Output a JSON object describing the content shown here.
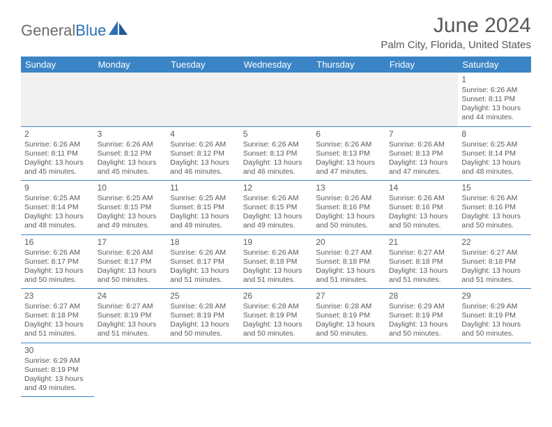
{
  "brand": {
    "part1": "General",
    "part2": "Blue"
  },
  "title": "June 2024",
  "location": "Palm City, Florida, United States",
  "colors": {
    "header_bg": "#3b85c6",
    "header_text": "#ffffff",
    "rule": "#3b85c6",
    "blank_bg": "#f1f1f1",
    "title_color": "#58585a",
    "text_color": "#5a5a5a",
    "logo_gray": "#6a6a6a",
    "logo_blue": "#2c6fb5",
    "background": "#ffffff"
  },
  "typography": {
    "month_title_pt": 30,
    "location_pt": 15,
    "weekday_pt": 13,
    "daynum_pt": 12,
    "body_pt": 10.5,
    "font_family": "Arial"
  },
  "calendar": {
    "type": "table",
    "columns": [
      "Sunday",
      "Monday",
      "Tuesday",
      "Wednesday",
      "Thursday",
      "Friday",
      "Saturday"
    ],
    "weeks": [
      [
        null,
        null,
        null,
        null,
        null,
        null,
        {
          "d": "1",
          "sr": "Sunrise: 6:26 AM",
          "ss": "Sunset: 8:11 PM",
          "dl1": "Daylight: 13 hours",
          "dl2": "and 44 minutes."
        }
      ],
      [
        {
          "d": "2",
          "sr": "Sunrise: 6:26 AM",
          "ss": "Sunset: 8:11 PM",
          "dl1": "Daylight: 13 hours",
          "dl2": "and 45 minutes."
        },
        {
          "d": "3",
          "sr": "Sunrise: 6:26 AM",
          "ss": "Sunset: 8:12 PM",
          "dl1": "Daylight: 13 hours",
          "dl2": "and 45 minutes."
        },
        {
          "d": "4",
          "sr": "Sunrise: 6:26 AM",
          "ss": "Sunset: 8:12 PM",
          "dl1": "Daylight: 13 hours",
          "dl2": "and 46 minutes."
        },
        {
          "d": "5",
          "sr": "Sunrise: 6:26 AM",
          "ss": "Sunset: 8:13 PM",
          "dl1": "Daylight: 13 hours",
          "dl2": "and 46 minutes."
        },
        {
          "d": "6",
          "sr": "Sunrise: 6:26 AM",
          "ss": "Sunset: 8:13 PM",
          "dl1": "Daylight: 13 hours",
          "dl2": "and 47 minutes."
        },
        {
          "d": "7",
          "sr": "Sunrise: 6:26 AM",
          "ss": "Sunset: 8:13 PM",
          "dl1": "Daylight: 13 hours",
          "dl2": "and 47 minutes."
        },
        {
          "d": "8",
          "sr": "Sunrise: 6:25 AM",
          "ss": "Sunset: 8:14 PM",
          "dl1": "Daylight: 13 hours",
          "dl2": "and 48 minutes."
        }
      ],
      [
        {
          "d": "9",
          "sr": "Sunrise: 6:25 AM",
          "ss": "Sunset: 8:14 PM",
          "dl1": "Daylight: 13 hours",
          "dl2": "and 48 minutes."
        },
        {
          "d": "10",
          "sr": "Sunrise: 6:25 AM",
          "ss": "Sunset: 8:15 PM",
          "dl1": "Daylight: 13 hours",
          "dl2": "and 49 minutes."
        },
        {
          "d": "11",
          "sr": "Sunrise: 6:25 AM",
          "ss": "Sunset: 8:15 PM",
          "dl1": "Daylight: 13 hours",
          "dl2": "and 49 minutes."
        },
        {
          "d": "12",
          "sr": "Sunrise: 6:26 AM",
          "ss": "Sunset: 8:15 PM",
          "dl1": "Daylight: 13 hours",
          "dl2": "and 49 minutes."
        },
        {
          "d": "13",
          "sr": "Sunrise: 6:26 AM",
          "ss": "Sunset: 8:16 PM",
          "dl1": "Daylight: 13 hours",
          "dl2": "and 50 minutes."
        },
        {
          "d": "14",
          "sr": "Sunrise: 6:26 AM",
          "ss": "Sunset: 8:16 PM",
          "dl1": "Daylight: 13 hours",
          "dl2": "and 50 minutes."
        },
        {
          "d": "15",
          "sr": "Sunrise: 6:26 AM",
          "ss": "Sunset: 8:16 PM",
          "dl1": "Daylight: 13 hours",
          "dl2": "and 50 minutes."
        }
      ],
      [
        {
          "d": "16",
          "sr": "Sunrise: 6:26 AM",
          "ss": "Sunset: 8:17 PM",
          "dl1": "Daylight: 13 hours",
          "dl2": "and 50 minutes."
        },
        {
          "d": "17",
          "sr": "Sunrise: 6:26 AM",
          "ss": "Sunset: 8:17 PM",
          "dl1": "Daylight: 13 hours",
          "dl2": "and 50 minutes."
        },
        {
          "d": "18",
          "sr": "Sunrise: 6:26 AM",
          "ss": "Sunset: 8:17 PM",
          "dl1": "Daylight: 13 hours",
          "dl2": "and 51 minutes."
        },
        {
          "d": "19",
          "sr": "Sunrise: 6:26 AM",
          "ss": "Sunset: 8:18 PM",
          "dl1": "Daylight: 13 hours",
          "dl2": "and 51 minutes."
        },
        {
          "d": "20",
          "sr": "Sunrise: 6:27 AM",
          "ss": "Sunset: 8:18 PM",
          "dl1": "Daylight: 13 hours",
          "dl2": "and 51 minutes."
        },
        {
          "d": "21",
          "sr": "Sunrise: 6:27 AM",
          "ss": "Sunset: 8:18 PM",
          "dl1": "Daylight: 13 hours",
          "dl2": "and 51 minutes."
        },
        {
          "d": "22",
          "sr": "Sunrise: 6:27 AM",
          "ss": "Sunset: 8:18 PM",
          "dl1": "Daylight: 13 hours",
          "dl2": "and 51 minutes."
        }
      ],
      [
        {
          "d": "23",
          "sr": "Sunrise: 6:27 AM",
          "ss": "Sunset: 8:18 PM",
          "dl1": "Daylight: 13 hours",
          "dl2": "and 51 minutes."
        },
        {
          "d": "24",
          "sr": "Sunrise: 6:27 AM",
          "ss": "Sunset: 8:19 PM",
          "dl1": "Daylight: 13 hours",
          "dl2": "and 51 minutes."
        },
        {
          "d": "25",
          "sr": "Sunrise: 6:28 AM",
          "ss": "Sunset: 8:19 PM",
          "dl1": "Daylight: 13 hours",
          "dl2": "and 50 minutes."
        },
        {
          "d": "26",
          "sr": "Sunrise: 6:28 AM",
          "ss": "Sunset: 8:19 PM",
          "dl1": "Daylight: 13 hours",
          "dl2": "and 50 minutes."
        },
        {
          "d": "27",
          "sr": "Sunrise: 6:28 AM",
          "ss": "Sunset: 8:19 PM",
          "dl1": "Daylight: 13 hours",
          "dl2": "and 50 minutes."
        },
        {
          "d": "28",
          "sr": "Sunrise: 6:29 AM",
          "ss": "Sunset: 8:19 PM",
          "dl1": "Daylight: 13 hours",
          "dl2": "and 50 minutes."
        },
        {
          "d": "29",
          "sr": "Sunrise: 6:29 AM",
          "ss": "Sunset: 8:19 PM",
          "dl1": "Daylight: 13 hours",
          "dl2": "and 50 minutes."
        }
      ],
      [
        {
          "d": "30",
          "sr": "Sunrise: 6:29 AM",
          "ss": "Sunset: 8:19 PM",
          "dl1": "Daylight: 13 hours",
          "dl2": "and 49 minutes."
        },
        null,
        null,
        null,
        null,
        null,
        null
      ]
    ]
  }
}
